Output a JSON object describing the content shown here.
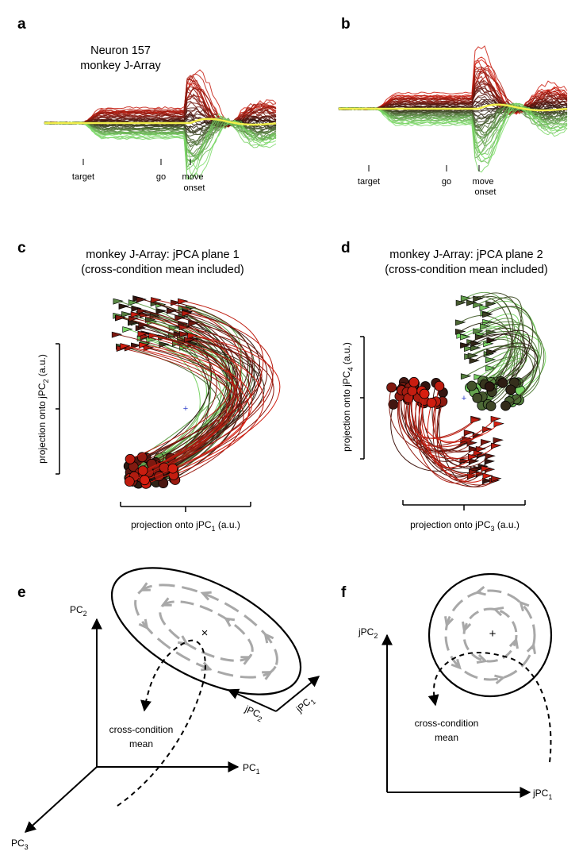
{
  "panels": {
    "a": {
      "label": "a",
      "title_line1": "Neuron 157",
      "title_line2": "monkey J-Array",
      "events": {
        "target": "target",
        "go": "go",
        "move_line1": "move",
        "move_line2": "onset"
      }
    },
    "b": {
      "label": "b",
      "events": {
        "target": "target",
        "go": "go",
        "move_line1": "move",
        "move_line2": "onset"
      }
    },
    "c": {
      "label": "c",
      "title_line1": "monkey J-Array:  jPCA plane 1",
      "title_line2": "(cross-condition mean included)",
      "xlabel": {
        "pre": "projection onto jPC",
        "sub": "1",
        "post": " (a.u.)"
      },
      "ylabel": {
        "pre": "projection onto jPC",
        "sub": "2",
        "post": " (a.u.)"
      }
    },
    "d": {
      "label": "d",
      "title_line1": "monkey J-Array:  jPCA plane 2",
      "title_line2": "(cross-condition mean included)",
      "xlabel": {
        "pre": "projection onto jPC",
        "sub": "3",
        "post": " (a.u.)"
      },
      "ylabel": {
        "pre": "projection onto jPC",
        "sub": "4",
        "post": " (a.u.)"
      }
    },
    "e": {
      "label": "e",
      "axes": {
        "pc1": {
          "pre": "PC",
          "sub": "1"
        },
        "pc2": {
          "pre": "PC",
          "sub": "2"
        },
        "pc3": {
          "pre": "PC",
          "sub": "3"
        },
        "jpc1": {
          "pre": "jPC",
          "sub": "1"
        },
        "jpc2": {
          "pre": "jPC",
          "sub": "2"
        }
      },
      "annotation_line1": "cross-condition",
      "annotation_line2": "mean"
    },
    "f": {
      "label": "f",
      "axes": {
        "jpc1": {
          "pre": "jPC",
          "sub": "1"
        },
        "jpc2": {
          "pre": "jPC",
          "sub": "2"
        }
      },
      "annotation_line1": "cross-condition",
      "annotation_line2": "mean"
    }
  },
  "colors": {
    "red": "#d81e10",
    "dark": "#2a1510",
    "green": "#3fb83a",
    "light_green": "#7ee06a",
    "yellow": "#f2ef4c",
    "gray_arrows": "#a8a8a8",
    "mean_marker": "#3344cc"
  }
}
